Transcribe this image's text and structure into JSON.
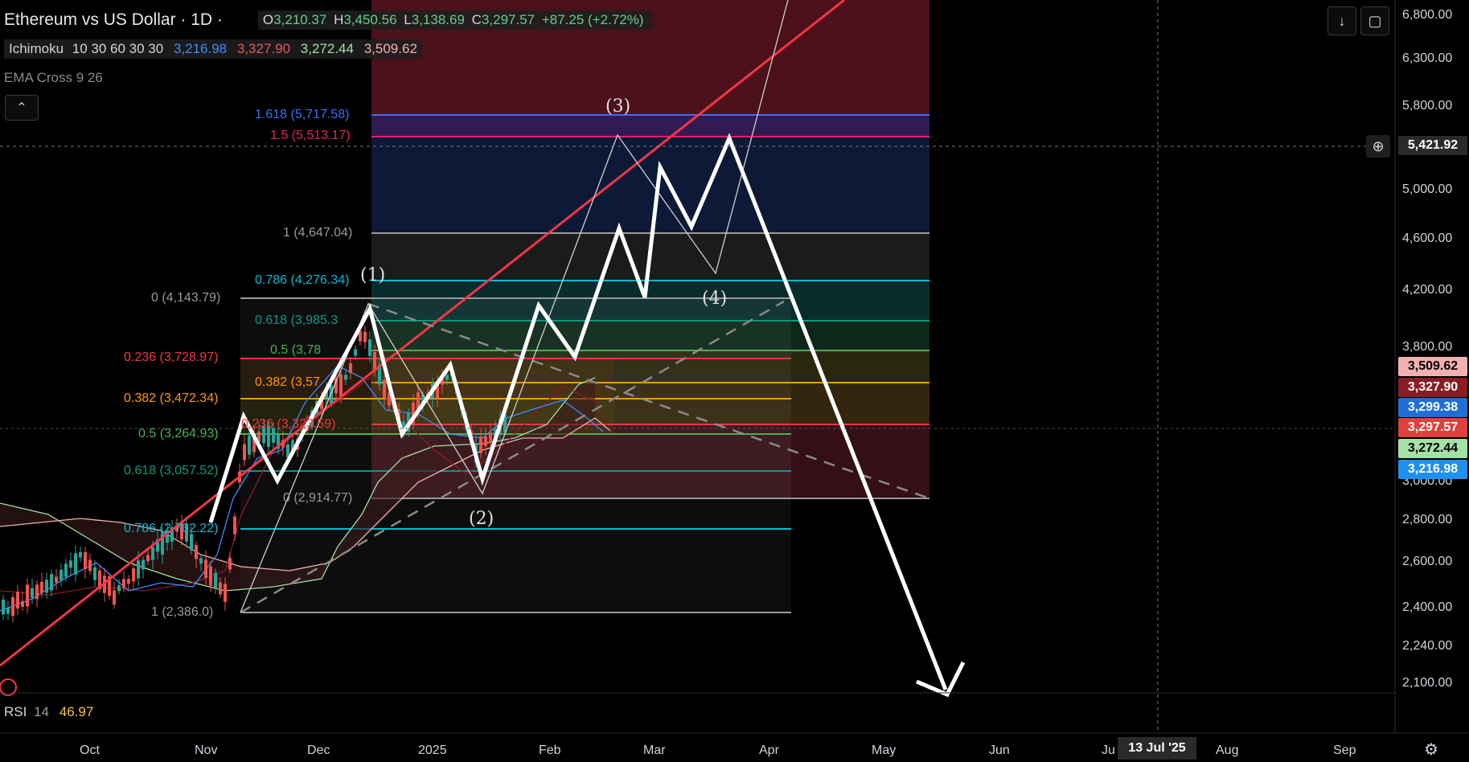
{
  "header": {
    "symbol": "Ethereum vs US Dollar · 1D ·",
    "open_key": "O",
    "open": "3,210.37",
    "high_key": "H",
    "high": "3,450.56",
    "low_key": "L",
    "low": "3,138.69",
    "close_key": "C",
    "close": "3,297.57",
    "change": "+87.25 (+2.72%)"
  },
  "indicators": {
    "ichimoku": {
      "name": "Ichimoku",
      "params": "10 30 60 30 30",
      "values": [
        "3,216.98",
        "3,327.90",
        "3,272.44",
        "3,509.62"
      ],
      "colors": [
        "#3d8bff",
        "#e05a5a",
        "#a5e0a5",
        "#f3b0b0"
      ]
    },
    "ema": {
      "name": "EMA Cross 9 26"
    },
    "rsi": {
      "name": "RSI",
      "param": "14",
      "value": "46.97"
    }
  },
  "price_axis": {
    "ticks": [
      "6,800.00",
      "6,300.00",
      "5,800.00",
      "5,000.00",
      "4,600.00",
      "4,200.00",
      "3,800.00",
      "3,000.00",
      "2,800.00",
      "2,600.00",
      "2,400.00",
      "2,240.00",
      "2,100.00"
    ],
    "crosshair_price": "5,421.92",
    "tags": [
      {
        "label": "3,509.62",
        "bg": "#f3b0b0",
        "fg": "#000000"
      },
      {
        "label": "3,327.90",
        "bg": "#8b1c24",
        "fg": "#ffffff"
      },
      {
        "label": "3,299.38",
        "bg": "#1f6fd6",
        "fg": "#ffffff"
      },
      {
        "label": "3,297.57",
        "bg": "#e0413c",
        "fg": "#ffffff"
      },
      {
        "label": "3,272.44",
        "bg": "#a5e0a5",
        "fg": "#000000"
      },
      {
        "label": "3,216.98",
        "bg": "#1f8ff0",
        "fg": "#ffffff"
      }
    ]
  },
  "time_axis": {
    "labels": [
      "Oct",
      "Nov",
      "Dec",
      "2025",
      "Feb",
      "Mar",
      "Apr",
      "May",
      "Jun",
      "Ju",
      "Aug",
      "Sep"
    ],
    "crosshair_date": "13 Jul '25"
  },
  "fib_retracement_a": [
    {
      "label": "0 (4,143.79)",
      "color": "#9a9a9a"
    },
    {
      "label": "0.236 (3,728.97)",
      "color": "#f23645"
    },
    {
      "label": "0.382 (3,472.34)",
      "color": "#ff9800"
    },
    {
      "label": "0.5 (3,264.93)",
      "color": "#4caf50"
    },
    {
      "label": "0.618 (3,057.52)",
      "color": "#089981"
    },
    {
      "label": "0.786 (2,762.22)",
      "color": "#00bcd4"
    },
    {
      "label": "1 (2,386.0)",
      "color": "#9a9a9a"
    }
  ],
  "fib_retracement_b": [
    {
      "label": "1.618 (5,717.58)",
      "color": "#3f6ef0"
    },
    {
      "label": "1.5 (5,513.17)",
      "color": "#e91e63"
    },
    {
      "label": "1 (4,647.04)",
      "color": "#9a9a9a"
    },
    {
      "label": "0.786 (4,276.34)",
      "color": "#00bcd4"
    },
    {
      "label": "0.618 (3,985.3",
      "color": "#089981"
    },
    {
      "label": "0.5 (3,78",
      "color": "#4caf50"
    },
    {
      "label": "0.382 (3,57",
      "color": "#ff9800"
    },
    {
      "label": "0.236 (3,323.59)",
      "color": "#f23645"
    },
    {
      "label": "0 (2,914.77)",
      "color": "#9a9a9a"
    }
  ],
  "waves": [
    "(1)",
    "(2)",
    "(3)",
    "(4)"
  ],
  "colors": {
    "up": "#26a69a",
    "down": "#ef5350",
    "trend": "#f23645",
    "projection": "#ffffff"
  }
}
